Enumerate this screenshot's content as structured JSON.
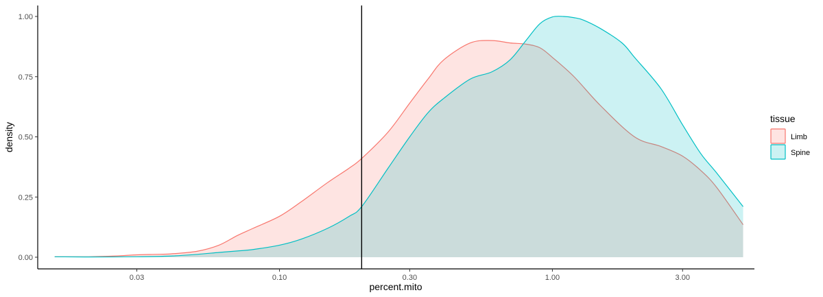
{
  "chart_data": {
    "type": "area",
    "title": "",
    "xlabel": "percent.mito",
    "ylabel": "density",
    "x_scale": "log10",
    "xlim": [
      0.013,
      5.5
    ],
    "ylim": [
      0,
      1.0
    ],
    "x_ticks": [
      0.03,
      0.1,
      0.3,
      1.0,
      3.0
    ],
    "x_tick_labels": [
      "0.03",
      "0.10",
      "0.30",
      "1.00",
      "3.00"
    ],
    "y_ticks": [
      0,
      0.25,
      0.5,
      0.75,
      1.0
    ],
    "y_tick_labels": [
      "0.00",
      "0.25",
      "0.50",
      "0.75",
      "1.00"
    ],
    "vline": 0.2,
    "grid": false,
    "legend": {
      "title": "tissue",
      "position": "right"
    },
    "series": [
      {
        "name": "Limb",
        "color": "#F8766D",
        "fill": "#F8766D",
        "x": [
          0.015,
          0.02,
          0.025,
          0.03,
          0.035,
          0.04,
          0.05,
          0.06,
          0.07,
          0.08,
          0.1,
          0.12,
          0.15,
          0.18,
          0.2,
          0.25,
          0.3,
          0.35,
          0.4,
          0.5,
          0.6,
          0.7,
          0.8,
          0.9,
          1.0,
          1.2,
          1.5,
          2.0,
          2.5,
          3.0,
          3.5,
          4.0,
          5.0
        ],
        "y": [
          0.002,
          0.002,
          0.005,
          0.01,
          0.012,
          0.014,
          0.025,
          0.05,
          0.09,
          0.12,
          0.17,
          0.23,
          0.31,
          0.37,
          0.41,
          0.52,
          0.64,
          0.74,
          0.82,
          0.89,
          0.9,
          0.89,
          0.885,
          0.87,
          0.83,
          0.75,
          0.63,
          0.5,
          0.46,
          0.42,
          0.36,
          0.29,
          0.135
        ]
      },
      {
        "name": "Spine",
        "color": "#00BFC4",
        "fill": "#00BFC4",
        "x": [
          0.015,
          0.02,
          0.03,
          0.04,
          0.05,
          0.06,
          0.07,
          0.08,
          0.1,
          0.12,
          0.15,
          0.18,
          0.2,
          0.25,
          0.3,
          0.35,
          0.4,
          0.5,
          0.6,
          0.7,
          0.8,
          0.9,
          1.0,
          1.1,
          1.2,
          1.3,
          1.5,
          1.8,
          2.0,
          2.5,
          3.0,
          3.5,
          4.0,
          5.0
        ],
        "y": [
          0.002,
          0.001,
          0.002,
          0.005,
          0.012,
          0.02,
          0.026,
          0.032,
          0.05,
          0.075,
          0.12,
          0.17,
          0.21,
          0.37,
          0.5,
          0.6,
          0.66,
          0.74,
          0.77,
          0.82,
          0.9,
          0.97,
          0.998,
          1.0,
          0.995,
          0.985,
          0.95,
          0.89,
          0.83,
          0.7,
          0.55,
          0.43,
          0.35,
          0.21
        ]
      }
    ]
  }
}
